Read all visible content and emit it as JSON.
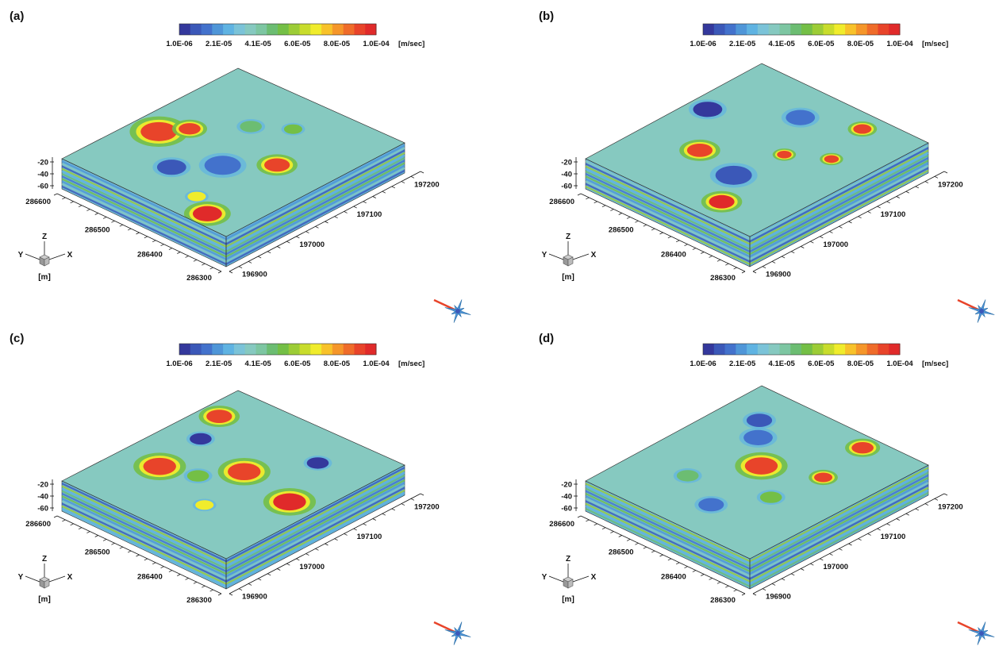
{
  "colorbar": {
    "colors": [
      "#34389c",
      "#3b58b8",
      "#4372cc",
      "#4f96d8",
      "#5fb3e2",
      "#7bc3d8",
      "#86c9c0",
      "#7dc6a2",
      "#6cbd72",
      "#74bf46",
      "#9ccc36",
      "#c8dc2c",
      "#f0ec2c",
      "#f8c22a",
      "#f5962a",
      "#ef6c2a",
      "#e8442a",
      "#e02a2a"
    ],
    "tick_labels": [
      "1.0E-06",
      "2.1E-05",
      "4.1E-05",
      "6.0E-05",
      "8.0E-05",
      "1.0E-04"
    ],
    "unit": "[m/sec]"
  },
  "axes": {
    "z_ticks": [
      "-20",
      "-40",
      "-60"
    ],
    "x_ticks": [
      "286600",
      "286500",
      "286400",
      "286300"
    ],
    "y_ticks": [
      "197200",
      "197100",
      "197000",
      "196900"
    ],
    "triad": {
      "z": "Z",
      "x": "X",
      "y": "Y",
      "unit": "[m]"
    }
  },
  "panels": [
    {
      "label": "(a)"
    },
    {
      "label": "(b)"
    },
    {
      "label": "(c)"
    },
    {
      "label": "(d)"
    }
  ]
}
